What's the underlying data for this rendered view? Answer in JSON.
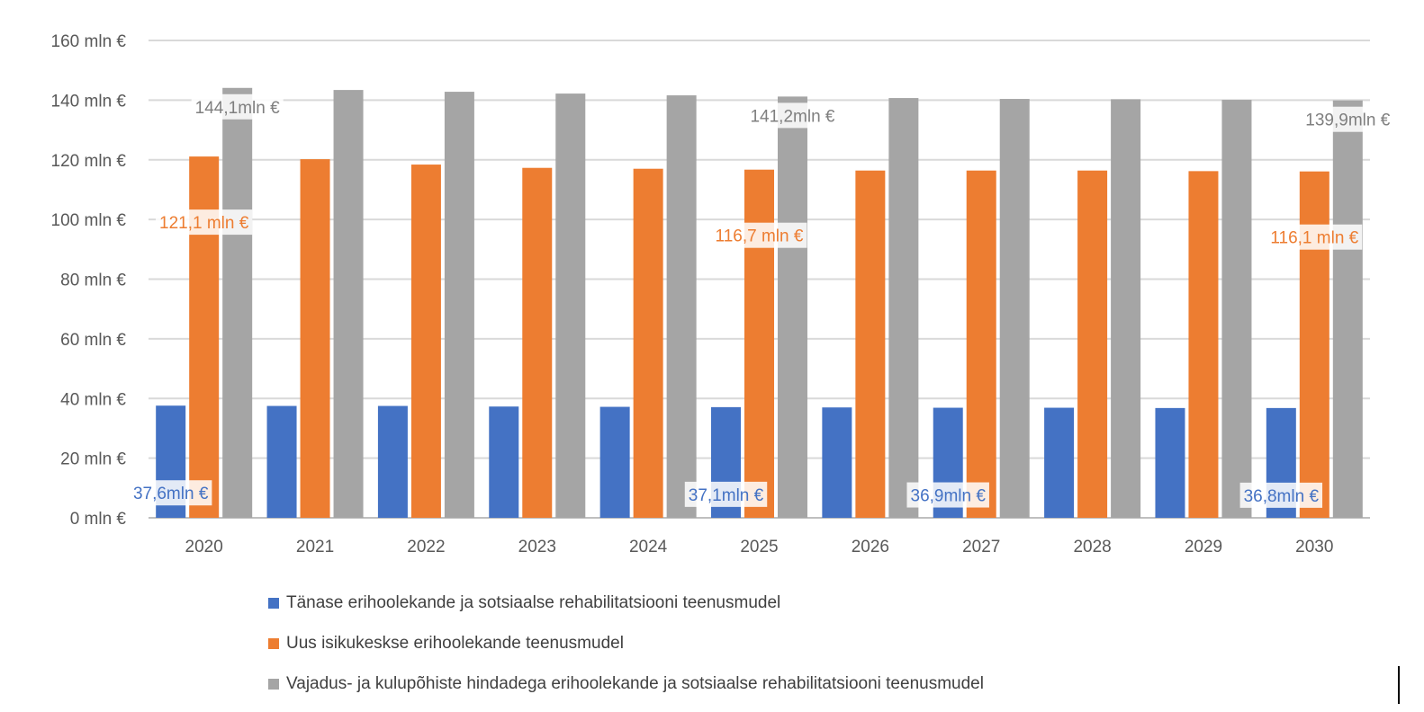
{
  "chart_data": {
    "type": "bar",
    "title": "",
    "xlabel": "",
    "ylabel": "",
    "ylim": [
      0,
      160
    ],
    "yticks": [
      0,
      20,
      40,
      60,
      80,
      100,
      120,
      140,
      160
    ],
    "ytick_labels": [
      "0 mln €",
      "20 mln €",
      "40 mln €",
      "60 mln €",
      "80 mln €",
      "100 mln €",
      "120 mln €",
      "140 mln €",
      "160 mln €"
    ],
    "grid": true,
    "legend_position": "bottom",
    "categories": [
      "2020",
      "2021",
      "2022",
      "2023",
      "2024",
      "2025",
      "2026",
      "2027",
      "2028",
      "2029",
      "2030"
    ],
    "series": [
      {
        "name": "Tänase erihoolekande ja sotsiaalse rehabilitatsiooni teenusmudel",
        "color": "#4472C4",
        "values": [
          37.6,
          37.5,
          37.5,
          37.3,
          37.2,
          37.1,
          37.0,
          36.9,
          36.9,
          36.8,
          36.8
        ],
        "labels": {
          "0": "37,6mln €",
          "5": "37,1mln €",
          "7": "36,9mln €",
          "10": "36,8mln €"
        }
      },
      {
        "name": "Uus isikukeskse erihoolekande teenusmudel",
        "color": "#ED7D31",
        "values": [
          121.1,
          120.2,
          118.4,
          117.3,
          117.0,
          116.7,
          116.4,
          116.4,
          116.4,
          116.2,
          116.1
        ],
        "labels": {
          "0": "121,1 mln €",
          "5": "116,7 mln €",
          "10": "116,1 mln €"
        }
      },
      {
        "name": "Vajadus- ja kulupõhiste hindadega erihoolekande ja sotsiaalse rehabilitatsiooni teenusmudel",
        "color": "#A5A5A5",
        "values": [
          144.1,
          143.4,
          142.8,
          142.2,
          141.6,
          141.2,
          140.7,
          140.4,
          140.3,
          140.1,
          139.9
        ],
        "labels": {
          "0": "144,1mln €",
          "5": "141,2mln €",
          "10": "139,9mln €"
        }
      }
    ]
  }
}
